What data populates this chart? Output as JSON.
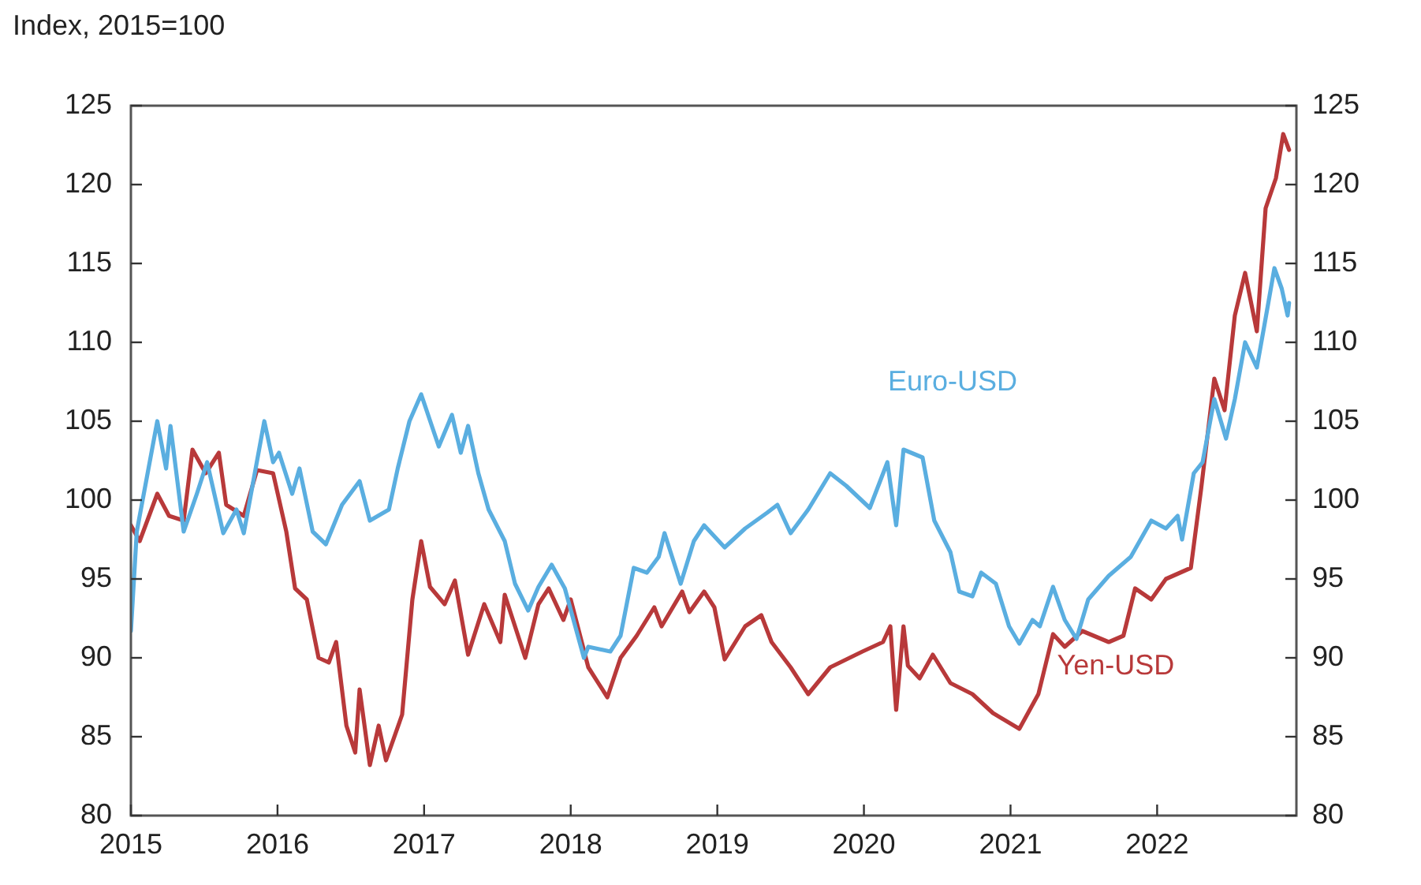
{
  "chart_data": {
    "type": "line",
    "ylabel": "Index, 2015=100",
    "xlim": [
      2015,
      2022.95
    ],
    "xticks": [
      2015,
      2016,
      2017,
      2018,
      2019,
      2020,
      2021,
      2022
    ],
    "ylim": [
      80,
      125
    ],
    "yticks": [
      80,
      85,
      90,
      95,
      100,
      105,
      110,
      115,
      120,
      125
    ],
    "y2lim": [
      80,
      125
    ],
    "y2ticks": [
      80,
      85,
      90,
      95,
      100,
      105,
      110,
      115,
      120,
      125
    ],
    "grid": false,
    "legend": false,
    "marker": "none",
    "line_style": "solid",
    "series": [
      {
        "name": "Euro-USD",
        "color": "#5aaee0",
        "x": [
          2015.0,
          2015.04,
          2015.18,
          2015.24,
          2015.27,
          2015.36,
          2015.45,
          2015.52,
          2015.63,
          2015.72,
          2015.77,
          2015.91,
          2015.97,
          2016.01,
          2016.1,
          2016.15,
          2016.24,
          2016.33,
          2016.44,
          2016.56,
          2016.63,
          2016.76,
          2016.82,
          2016.9,
          2016.98,
          2017.1,
          2017.19,
          2017.25,
          2017.3,
          2017.37,
          2017.44,
          2017.55,
          2017.62,
          2017.71,
          2017.78,
          2017.87,
          2017.96,
          2018.09,
          2018.12,
          2018.27,
          2018.34,
          2018.43,
          2018.52,
          2018.6,
          2018.64,
          2018.75,
          2018.84,
          2018.91,
          2019.05,
          2019.19,
          2019.34,
          2019.41,
          2019.5,
          2019.62,
          2019.77,
          2019.88,
          2020.04,
          2020.16,
          2020.22,
          2020.27,
          2020.4,
          2020.48,
          2020.59,
          2020.65,
          2020.74,
          2020.8,
          2020.9,
          2020.99,
          2021.06,
          2021.15,
          2021.2,
          2021.29,
          2021.37,
          2021.45,
          2021.53,
          2021.67,
          2021.82,
          2021.96,
          2022.06,
          2022.14,
          2022.17,
          2022.25,
          2022.31,
          2022.39,
          2022.47,
          2022.53,
          2022.6,
          2022.68,
          2022.73,
          2022.8,
          2022.85,
          2022.89,
          2022.9
        ],
        "values": [
          91.7,
          98,
          105,
          102,
          104.7,
          98,
          100.4,
          102.4,
          97.9,
          99.4,
          97.9,
          105,
          102.4,
          103,
          100.4,
          102,
          98,
          97.2,
          99.7,
          101.2,
          98.7,
          99.4,
          102,
          105,
          106.7,
          103.4,
          105.4,
          103,
          104.7,
          101.7,
          99.4,
          97.4,
          94.7,
          93,
          94.5,
          95.9,
          94.4,
          90,
          90.7,
          90.4,
          91.4,
          95.7,
          95.4,
          96.4,
          97.9,
          94.7,
          97.4,
          98.4,
          97,
          98.2,
          99.2,
          99.7,
          97.9,
          99.4,
          101.7,
          100.9,
          99.5,
          102.4,
          98.4,
          103.2,
          102.7,
          98.7,
          96.7,
          94.2,
          93.9,
          95.4,
          94.7,
          92,
          90.9,
          92.4,
          92,
          94.5,
          92.4,
          91.2,
          93.7,
          95.2,
          96.4,
          98.7,
          98.2,
          99,
          97.5,
          101.7,
          102.4,
          106.4,
          103.9,
          106.4,
          110,
          108.4,
          111,
          114.7,
          113.4,
          111.7,
          112.5
        ]
      },
      {
        "name": "Yen-USD",
        "color": "#b8393a",
        "x": [
          2015.0,
          2015.06,
          2015.18,
          2015.26,
          2015.36,
          2015.42,
          2015.51,
          2015.6,
          2015.65,
          2015.77,
          2015.86,
          2015.97,
          2016.06,
          2016.12,
          2016.2,
          2016.28,
          2016.35,
          2016.4,
          2016.47,
          2016.53,
          2016.56,
          2016.63,
          2016.69,
          2016.74,
          2016.85,
          2016.92,
          2016.98,
          2017.04,
          2017.14,
          2017.21,
          2017.3,
          2017.41,
          2017.52,
          2017.55,
          2017.69,
          2017.78,
          2017.85,
          2017.95,
          2018.0,
          2018.12,
          2018.25,
          2018.34,
          2018.45,
          2018.57,
          2018.62,
          2018.76,
          2018.81,
          2018.91,
          2018.98,
          2019.05,
          2019.19,
          2019.3,
          2019.37,
          2019.5,
          2019.62,
          2019.77,
          2019.99,
          2020.13,
          2020.18,
          2020.22,
          2020.27,
          2020.3,
          2020.38,
          2020.47,
          2020.59,
          2020.74,
          2020.88,
          2021.06,
          2021.19,
          2021.29,
          2021.37,
          2021.49,
          2021.67,
          2021.77,
          2021.85,
          2021.96,
          2022.06,
          2022.23,
          2022.3,
          2022.39,
          2022.46,
          2022.53,
          2022.6,
          2022.68,
          2022.74,
          2022.81,
          2022.86,
          2022.9
        ],
        "values": [
          98.4,
          97.4,
          100.4,
          99,
          98.7,
          103.2,
          101.7,
          103,
          99.7,
          99,
          101.9,
          101.7,
          98,
          94.4,
          93.7,
          90,
          89.7,
          91,
          85.7,
          84,
          88,
          83.2,
          85.7,
          83.5,
          86.4,
          93.7,
          97.4,
          94.5,
          93.4,
          94.9,
          90.2,
          93.4,
          91,
          94,
          90,
          93.4,
          94.4,
          92.4,
          93.7,
          89.4,
          87.5,
          90,
          91.4,
          93.2,
          92,
          94.2,
          92.9,
          94.2,
          93.2,
          89.9,
          92,
          92.7,
          91,
          89.4,
          87.7,
          89.4,
          90.4,
          91,
          92,
          86.7,
          92,
          89.5,
          88.7,
          90.2,
          88.4,
          87.7,
          86.5,
          85.5,
          87.7,
          91.5,
          90.7,
          91.7,
          91,
          91.4,
          94.4,
          93.7,
          95,
          95.7,
          100.7,
          107.7,
          105.7,
          111.7,
          114.4,
          110.7,
          118.5,
          120.4,
          123.2,
          122.2
        ]
      }
    ]
  }
}
